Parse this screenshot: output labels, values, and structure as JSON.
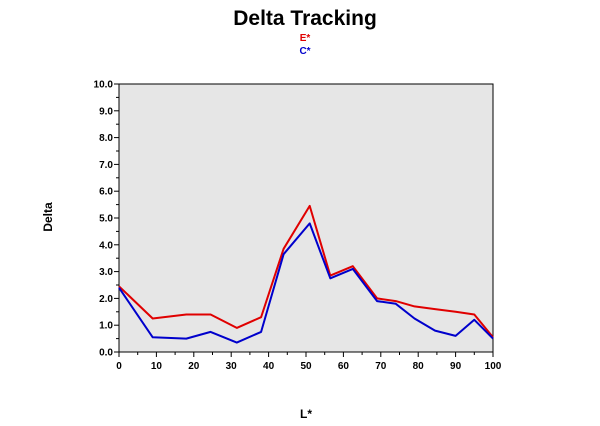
{
  "chart_data": {
    "type": "line",
    "title": "Delta Tracking",
    "xlabel": "L*",
    "ylabel": "Delta",
    "xlim": [
      0,
      100
    ],
    "ylim": [
      0,
      10
    ],
    "x_ticks": [
      "0",
      "10",
      "20",
      "30",
      "40",
      "50",
      "60",
      "70",
      "80",
      "90",
      "100"
    ],
    "y_ticks": [
      "0.0",
      "1.0",
      "2.0",
      "3.0",
      "4.0",
      "5.0",
      "6.0",
      "7.0",
      "8.0",
      "9.0",
      "10.0"
    ],
    "grid": false,
    "legend_position": "top-center",
    "plot_background": "#e6e6e6",
    "series": [
      {
        "name": "E*",
        "color": "#e00000",
        "x": [
          0,
          9,
          18,
          24.5,
          31.5,
          38,
          44,
          51,
          56.5,
          62.5,
          69,
          74,
          79,
          84.5,
          90,
          95,
          100
        ],
        "y": [
          2.45,
          1.25,
          1.4,
          1.4,
          0.9,
          1.3,
          3.85,
          5.45,
          2.85,
          3.2,
          2.0,
          1.9,
          1.7,
          1.6,
          1.5,
          1.4,
          0.55
        ]
      },
      {
        "name": "C*",
        "color": "#0000cc",
        "x": [
          0,
          9,
          18,
          24.5,
          31.5,
          38,
          44,
          51,
          56.5,
          62.5,
          69,
          74,
          79,
          84.5,
          90,
          95,
          100
        ],
        "y": [
          2.4,
          0.55,
          0.5,
          0.75,
          0.35,
          0.75,
          3.65,
          4.8,
          2.75,
          3.1,
          1.9,
          1.8,
          1.25,
          0.8,
          0.6,
          1.2,
          0.5
        ]
      }
    ]
  }
}
